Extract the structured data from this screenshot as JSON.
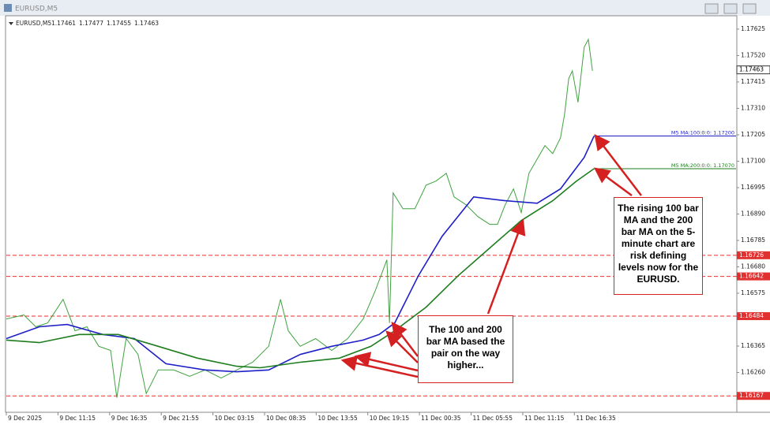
{
  "chart_data": {
    "type": "line",
    "window_title": "EURUSD,M5",
    "ohlc": [
      1.17461,
      1.17477,
      1.17455,
      1.17463
    ],
    "xlim": [
      0,
      14.13
    ],
    "ylim": [
      1.16105,
      1.17653
    ],
    "xticks": [
      {
        "value": 0,
        "label": "9 Dec 2025"
      },
      {
        "value": 1,
        "label": "9 Dec 11:15"
      },
      {
        "value": 2,
        "label": "9 Dec 16:35"
      },
      {
        "value": 3,
        "label": "9 Dec 21:55"
      },
      {
        "value": 4,
        "label": "10 Dec 03:15"
      },
      {
        "value": 5,
        "label": "10 Dec 08:35"
      },
      {
        "value": 6,
        "label": "10 Dec 13:55"
      },
      {
        "value": 7,
        "label": "10 Dec 19:15"
      },
      {
        "value": 8,
        "label": "11 Dec 00:35"
      },
      {
        "value": 9,
        "label": "11 Dec 05:55"
      },
      {
        "value": 10,
        "label": "11 Dec 11:15"
      },
      {
        "value": 11,
        "label": "11 Dec 16:35"
      }
    ],
    "yticks": [
      1.17625,
      {
        "value": 1.1752,
        "label": "1.17520"
      },
      1.17415,
      {
        "value": 1.1731,
        "label": "1.17310"
      },
      1.17205,
      {
        "value": 1.171,
        "label": "1.17100"
      },
      1.16995,
      {
        "value": 1.1689,
        "label": "1.16890"
      },
      1.16785,
      {
        "value": 1.1668,
        "label": "1.16680"
      },
      1.16575,
      1.16365,
      {
        "value": 1.1626,
        "label": "1.16260"
      }
    ],
    "levels": [
      1.16726,
      1.16642,
      1.16484,
      1.16167
    ],
    "level_color": "#e03030",
    "current_price": 1.17463,
    "series": [
      {
        "name": "EURUSD,M5",
        "color": "#3fa33f",
        "x": [
          0,
          0.34,
          0.57,
          0.8,
          1.1,
          1.33,
          1.56,
          1.79,
          2.02,
          2.14,
          2.32,
          2.55,
          2.71,
          2.94,
          3.24,
          3.55,
          3.85,
          4.16,
          4.46,
          4.77,
          5.08,
          5.31,
          5.46,
          5.69,
          5.99,
          6.3,
          6.61,
          6.91,
          7.14,
          7.37,
          7.42,
          7.49,
          7.68,
          7.91,
          8.13,
          8.32,
          8.52,
          8.67,
          8.9,
          9.13,
          9.36,
          9.51,
          9.66,
          9.82,
          9.97,
          10.12,
          10.43,
          10.58,
          10.73,
          10.81,
          10.89,
          10.96,
          11.07,
          11.19,
          11.27,
          11.35
        ],
        "values": [
          1.16473,
          1.16489,
          1.16442,
          1.16457,
          1.16551,
          1.16426,
          1.16442,
          1.16364,
          1.16348,
          1.1616,
          1.16395,
          1.16332,
          1.16176,
          1.1627,
          1.1627,
          1.16245,
          1.1627,
          1.16238,
          1.1627,
          1.16301,
          1.16364,
          1.16551,
          1.16426,
          1.16364,
          1.16395,
          1.16348,
          1.16395,
          1.16473,
          1.16583,
          1.16708,
          1.16457,
          1.16974,
          1.16911,
          1.16911,
          1.17005,
          1.17021,
          1.17052,
          1.16958,
          1.16927,
          1.1688,
          1.16849,
          1.16849,
          1.16927,
          1.1699,
          1.16896,
          1.17052,
          1.17162,
          1.1713,
          1.17193,
          1.17287,
          1.17428,
          1.17459,
          1.17334,
          1.17553,
          1.17584,
          1.17459
        ]
      },
      {
        "name": "M5 MA:100:0:0: 1.17200",
        "color": "#1f1fc8",
        "x": [
          0,
          0.64,
          1.18,
          1.87,
          2.48,
          3.09,
          3.85,
          4.46,
          5.08,
          5.69,
          6.3,
          6.91,
          7.22,
          7.52,
          7.98,
          8.44,
          9.05,
          9.66,
          10.28,
          10.73,
          11.19,
          11.38
        ],
        "values": [
          1.16395,
          1.16442,
          1.16451,
          1.16411,
          1.16395,
          1.16295,
          1.1627,
          1.16263,
          1.1627,
          1.16332,
          1.16364,
          1.16389,
          1.16411,
          1.16457,
          1.16645,
          1.16802,
          1.16958,
          1.16943,
          1.16933,
          1.1699,
          1.17115,
          1.172
        ]
      },
      {
        "name": "M5 MA:200:0:0: 1.17070",
        "color": "#1e7d1e",
        "x": [
          0,
          0.64,
          1.41,
          2.17,
          2.94,
          3.7,
          4.46,
          4.92,
          5.69,
          6.45,
          7.06,
          7.52,
          8.13,
          8.75,
          9.36,
          9.97,
          10.58,
          11.04,
          11.38
        ],
        "values": [
          1.16389,
          1.16379,
          1.16411,
          1.16411,
          1.16364,
          1.16317,
          1.16285,
          1.16279,
          1.16301,
          1.16317,
          1.16364,
          1.16426,
          1.1652,
          1.16645,
          1.16755,
          1.16864,
          1.16943,
          1.17021,
          1.1707
        ]
      }
    ],
    "annotations": [
      "The rising 100 bar MA and the 200 bar MA on the 5-minute chart are risk defining levels now for the EURUSD.",
      "The 100 and 200 bar MA based the pair on the way higher..."
    ]
  }
}
